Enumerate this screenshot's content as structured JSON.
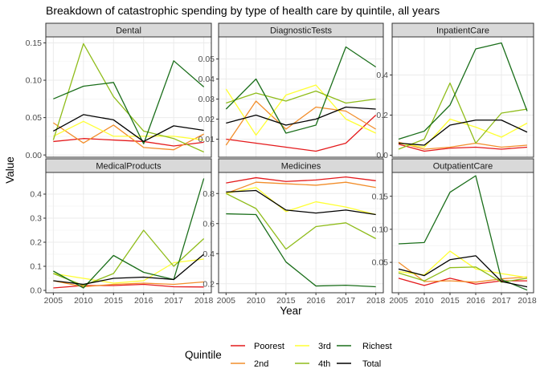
{
  "chart_data": {
    "type": "line",
    "title": "Breakdown of catastrophic spending by type of health care by quintile, all years",
    "xlabel": "Year",
    "ylabel": "Value",
    "x": [
      "2005",
      "2010",
      "2015",
      "2016",
      "2017",
      "2018"
    ],
    "grid": true,
    "legend": {
      "title": "Quintile",
      "position": "bottom",
      "entries": [
        {
          "name": "Poorest",
          "color": "#e41a1c"
        },
        {
          "name": "2nd",
          "color": "#f28e2b"
        },
        {
          "name": "3rd",
          "color": "#ffff33"
        },
        {
          "name": "4th",
          "color": "#8fbc1a"
        },
        {
          "name": "Richest",
          "color": "#1a6e1a"
        },
        {
          "name": "Total",
          "color": "#000000"
        }
      ]
    },
    "panels": [
      {
        "name": "Dental",
        "ylim": [
          -0.003,
          0.158
        ],
        "yticks": [
          0.0,
          0.05,
          0.1,
          0.15
        ],
        "ytick_labels": [
          "0.00",
          "0.05",
          "0.10",
          "0.15"
        ],
        "series": [
          {
            "name": "Poorest",
            "values": [
              0.018,
              0.022,
              0.02,
              0.018,
              0.012,
              0.017
            ]
          },
          {
            "name": "2nd",
            "values": [
              0.043,
              0.016,
              0.04,
              0.01,
              0.007,
              0.028
            ]
          },
          {
            "name": "3rd",
            "values": [
              0.025,
              0.045,
              0.025,
              0.025,
              0.025,
              0.02
            ]
          },
          {
            "name": "4th",
            "values": [
              0.02,
              0.149,
              0.078,
              0.032,
              0.022,
              0.004
            ]
          },
          {
            "name": "Richest",
            "values": [
              0.075,
              0.092,
              0.097,
              0.015,
              0.126,
              0.091
            ]
          },
          {
            "name": "Total",
            "values": [
              0.032,
              0.054,
              0.047,
              0.018,
              0.039,
              0.033
            ]
          }
        ]
      },
      {
        "name": "DiagnosticTests",
        "ylim": [
          0.001,
          0.061
        ],
        "yticks": [
          0.01,
          0.02,
          0.03,
          0.04,
          0.05
        ],
        "ytick_labels": [
          "0.01",
          "0.02",
          "0.03",
          "0.04",
          "0.05"
        ],
        "series": [
          {
            "name": "Poorest",
            "values": [
              0.01,
              0.008,
              0.006,
              0.004,
              0.008,
              0.022
            ]
          },
          {
            "name": "2nd",
            "values": [
              0.007,
              0.029,
              0.015,
              0.026,
              0.024,
              0.015
            ]
          },
          {
            "name": "3rd",
            "values": [
              0.035,
              0.012,
              0.032,
              0.037,
              0.02,
              0.013
            ]
          },
          {
            "name": "4th",
            "values": [
              0.028,
              0.033,
              0.029,
              0.034,
              0.028,
              0.03
            ]
          },
          {
            "name": "Richest",
            "values": [
              0.025,
              0.04,
              0.013,
              0.017,
              0.056,
              0.046
            ]
          },
          {
            "name": "Total",
            "values": [
              0.018,
              0.022,
              0.017,
              0.02,
              0.026,
              0.025
            ]
          }
        ]
      },
      {
        "name": "InpatientCare",
        "ylim": [
          -0.01,
          0.59
        ],
        "yticks": [
          0.0,
          0.2,
          0.4
        ],
        "ytick_labels": [
          "0.0",
          "0.2",
          "0.4"
        ],
        "series": [
          {
            "name": "Poorest",
            "values": [
              0.055,
              0.02,
              0.035,
              0.04,
              0.03,
              0.04
            ]
          },
          {
            "name": "2nd",
            "values": [
              0.065,
              0.03,
              0.04,
              0.06,
              0.04,
              0.05
            ]
          },
          {
            "name": "3rd",
            "values": [
              0.06,
              0.04,
              0.18,
              0.14,
              0.09,
              0.16
            ]
          },
          {
            "name": "4th",
            "values": [
              0.03,
              0.08,
              0.36,
              0.06,
              0.21,
              0.23
            ]
          },
          {
            "name": "Richest",
            "values": [
              0.08,
              0.12,
              0.25,
              0.53,
              0.56,
              0.22
            ]
          },
          {
            "name": "Total",
            "values": [
              0.06,
              0.05,
              0.15,
              0.175,
              0.175,
              0.115
            ]
          }
        ]
      },
      {
        "name": "MedicalProducts",
        "ylim": [
          -0.01,
          0.49
        ],
        "yticks": [
          0.0,
          0.1,
          0.2,
          0.3,
          0.4
        ],
        "ytick_labels": [
          "0.0",
          "0.1",
          "0.2",
          "0.3",
          "0.4"
        ],
        "series": [
          {
            "name": "Poorest",
            "values": [
              0.01,
              0.02,
              0.02,
              0.025,
              0.015,
              0.014
            ]
          },
          {
            "name": "2nd",
            "values": [
              0.04,
              0.015,
              0.025,
              0.03,
              0.025,
              0.035
            ]
          },
          {
            "name": "3rd",
            "values": [
              0.07,
              0.05,
              0.03,
              0.04,
              0.115,
              0.13
            ]
          },
          {
            "name": "4th",
            "values": [
              0.07,
              0.02,
              0.07,
              0.25,
              0.1,
              0.215
            ]
          },
          {
            "name": "Richest",
            "values": [
              0.08,
              0.01,
              0.145,
              0.075,
              0.045,
              0.465
            ]
          },
          {
            "name": "Total",
            "values": [
              0.04,
              0.025,
              0.05,
              0.055,
              0.045,
              0.15
            ]
          }
        ]
      },
      {
        "name": "Medicines",
        "ylim": [
          0.14,
          0.94
        ],
        "yticks": [
          0.2,
          0.4,
          0.6,
          0.8
        ],
        "ytick_labels": [
          "0.2",
          "0.4",
          "0.6",
          "0.8"
        ],
        "series": [
          {
            "name": "Poorest",
            "values": [
              0.87,
              0.905,
              0.88,
              0.89,
              0.91,
              0.885
            ]
          },
          {
            "name": "2nd",
            "values": [
              0.8,
              0.875,
              0.865,
              0.855,
              0.875,
              0.84
            ]
          },
          {
            "name": "3rd",
            "values": [
              0.8,
              0.84,
              0.68,
              0.745,
              0.71,
              0.66
            ]
          },
          {
            "name": "4th",
            "values": [
              0.8,
              0.7,
              0.43,
              0.58,
              0.605,
              0.5
            ]
          },
          {
            "name": "Richest",
            "values": [
              0.665,
              0.66,
              0.345,
              0.185,
              0.19,
              0.18
            ]
          },
          {
            "name": "Total",
            "values": [
              0.81,
              0.82,
              0.69,
              0.67,
              0.69,
              0.66
            ]
          }
        ]
      },
      {
        "name": "OutpatientCare",
        "ylim": [
          0.004,
          0.186
        ],
        "yticks": [
          0.05,
          0.1,
          0.15
        ],
        "ytick_labels": [
          "0.05",
          "0.10",
          "0.15"
        ],
        "series": [
          {
            "name": "Poorest",
            "values": [
              0.026,
              0.015,
              0.026,
              0.017,
              0.022,
              0.022
            ]
          },
          {
            "name": "2nd",
            "values": [
              0.05,
              0.021,
              0.022,
              0.02,
              0.025,
              0.028
            ]
          },
          {
            "name": "3rd",
            "values": [
              0.036,
              0.031,
              0.067,
              0.04,
              0.033,
              0.027
            ]
          },
          {
            "name": "4th",
            "values": [
              0.034,
              0.022,
              0.042,
              0.043,
              0.02,
              0.026
            ]
          },
          {
            "name": "Richest",
            "values": [
              0.078,
              0.08,
              0.156,
              0.181,
              0.024,
              0.008
            ]
          },
          {
            "name": "Total",
            "values": [
              0.04,
              0.03,
              0.054,
              0.06,
              0.021,
              0.013
            ]
          }
        ]
      }
    ]
  }
}
